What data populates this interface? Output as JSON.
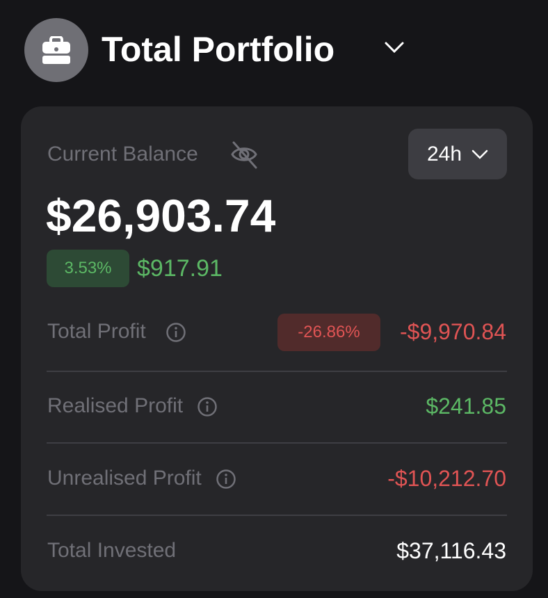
{
  "header": {
    "title": "Total Portfolio",
    "avatar_icon": "briefcase-icon",
    "dropdown_icon": "chevron-down-icon"
  },
  "balance": {
    "label": "Current Balance",
    "hide_icon": "eye-off-icon",
    "range": "24h",
    "value": "$26,903.74",
    "change_percent": "3.53%",
    "change_value": "$917.91"
  },
  "rows": [
    {
      "label": "Total Profit",
      "percent": "-26.86%",
      "value": "-$9,970.84"
    },
    {
      "label": "Realised Profit",
      "value": "$241.85"
    },
    {
      "label": "Unrealised Profit",
      "value": "-$10,212.70"
    },
    {
      "label": "Total Invested",
      "value": "$37,116.43"
    }
  ],
  "colors": {
    "background": "#151518",
    "card": "#262629",
    "positive": "#5cb865",
    "negative": "#e05454",
    "muted": "#707077"
  }
}
